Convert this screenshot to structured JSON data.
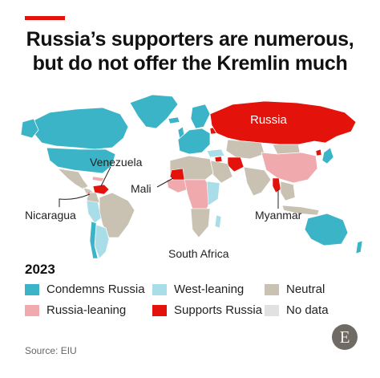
{
  "header": {
    "title_line1": "Russia’s supporters are numerous,",
    "title_line2": "but do not offer the Kremlin much"
  },
  "map": {
    "labels": {
      "russia": "Russia",
      "venezuela": "Venezuela",
      "mali": "Mali",
      "nicaragua": "Nicaragua",
      "myanmar": "Myanmar",
      "south_africa": "South Africa"
    }
  },
  "legend": {
    "year": "2023",
    "items": [
      {
        "label": "Condemns Russia",
        "color": "#3ab4c6"
      },
      {
        "label": "West-leaning",
        "color": "#a9dde7"
      },
      {
        "label": "Neutral",
        "color": "#c9c2b3"
      },
      {
        "label": "Russia-leaning",
        "color": "#f0a9ad"
      },
      {
        "label": "Supports Russia",
        "color": "#e3120b"
      },
      {
        "label": "No data",
        "color": "#e1e1e1"
      }
    ]
  },
  "footer": {
    "source": "Source: EIU",
    "logo_letter": "E"
  },
  "colors": {
    "accent": "#e3120b"
  }
}
